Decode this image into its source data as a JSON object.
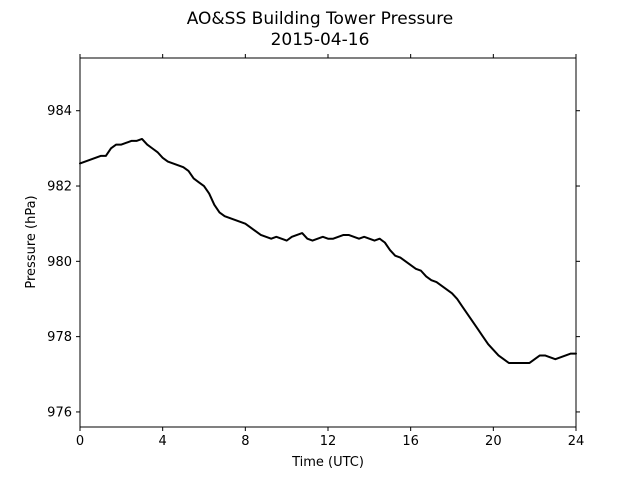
{
  "chart_data": {
    "type": "line",
    "title": "AO&SS Building Tower Pressure",
    "subtitle": "2015-04-16",
    "xlabel": "Time (UTC)",
    "ylabel": "Pressure (hPa)",
    "xlim": [
      0,
      24
    ],
    "ylim": [
      975.6,
      985.4
    ],
    "xticks": [
      0,
      4,
      8,
      12,
      16,
      20,
      24
    ],
    "yticks": [
      976,
      978,
      980,
      982,
      984
    ],
    "grid": false,
    "line_color": "#000000",
    "series": [
      {
        "x": [
          0,
          0.25,
          0.5,
          0.75,
          1.0,
          1.25,
          1.5,
          1.75,
          2.0,
          2.25,
          2.5,
          2.75,
          3.0,
          3.25,
          3.5,
          3.75,
          4.0,
          4.25,
          4.5,
          4.75,
          5.0,
          5.25,
          5.5,
          5.75,
          6.0,
          6.25,
          6.5,
          6.75,
          7.0,
          7.25,
          7.5,
          7.75,
          8.0,
          8.25,
          8.5,
          8.75,
          9.0,
          9.25,
          9.5,
          9.75,
          10.0,
          10.25,
          10.5,
          10.75,
          11.0,
          11.25,
          11.5,
          11.75,
          12.0,
          12.25,
          12.5,
          12.75,
          13.0,
          13.25,
          13.5,
          13.75,
          14.0,
          14.25,
          14.5,
          14.75,
          15.0,
          15.25,
          15.5,
          15.75,
          16.0,
          16.25,
          16.5,
          16.75,
          17.0,
          17.25,
          17.5,
          17.75,
          18.0,
          18.25,
          18.5,
          18.75,
          19.0,
          19.25,
          19.5,
          19.75,
          20.0,
          20.25,
          20.5,
          20.75,
          21.0,
          21.25,
          21.5,
          21.75,
          22.0,
          22.25,
          22.5,
          22.75,
          23.0,
          23.25,
          23.5,
          23.75,
          24.0
        ],
        "y": [
          982.6,
          982.65,
          982.7,
          982.75,
          982.8,
          982.8,
          983.0,
          983.1,
          983.1,
          983.15,
          983.2,
          983.2,
          983.25,
          983.1,
          983.0,
          982.9,
          982.75,
          982.65,
          982.6,
          982.55,
          982.5,
          982.4,
          982.2,
          982.1,
          982.0,
          981.8,
          981.5,
          981.3,
          981.2,
          981.15,
          981.1,
          981.05,
          981.0,
          980.9,
          980.8,
          980.7,
          980.65,
          980.6,
          980.65,
          980.6,
          980.55,
          980.65,
          980.7,
          980.75,
          980.6,
          980.55,
          980.6,
          980.65,
          980.6,
          980.6,
          980.65,
          980.7,
          980.7,
          980.65,
          980.6,
          980.65,
          980.6,
          980.55,
          980.6,
          980.5,
          980.3,
          980.15,
          980.1,
          980.0,
          979.9,
          979.8,
          979.75,
          979.6,
          979.5,
          979.45,
          979.35,
          979.25,
          979.15,
          979.0,
          978.8,
          978.6,
          978.4,
          978.2,
          978.0,
          977.8,
          977.65,
          977.5,
          977.4,
          977.3,
          977.3,
          977.3,
          977.3,
          977.3,
          977.4,
          977.5,
          977.5,
          977.45,
          977.4,
          977.45,
          977.5,
          977.55,
          977.55
        ]
      }
    ]
  }
}
